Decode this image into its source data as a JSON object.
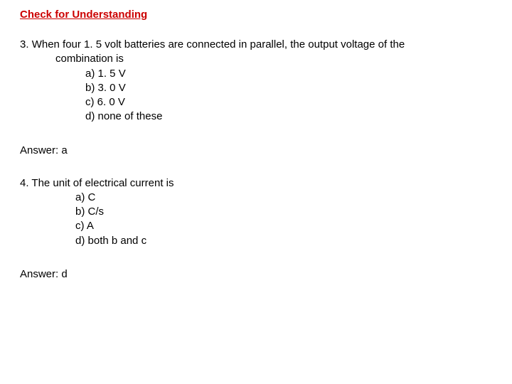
{
  "title": "Check for Understanding",
  "q3": {
    "number": "3. ",
    "line1": "When four 1. 5 volt batteries are connected in parallel, the output voltage of the",
    "line2": "combination is",
    "opt_a": "a) 1. 5 V",
    "opt_b": "b) 3. 0 V",
    "opt_c": "c) 6. 0 V",
    "opt_d": "d) none of these",
    "answer": "Answer: a"
  },
  "q4": {
    "number": "4. ",
    "line1": "The unit of electrical current is",
    "opt_a": "a) C",
    "opt_b": "b) C/s",
    "opt_c": "c) A",
    "opt_d": "d) both b and c",
    "answer": "Answer: d"
  },
  "colors": {
    "title": "#cc0000",
    "text": "#000000",
    "background": "#ffffff"
  },
  "fontsize": 15
}
